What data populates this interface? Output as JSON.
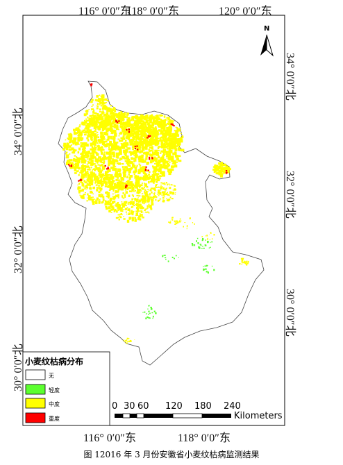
{
  "coords": {
    "top": [
      "116° 0′0″东",
      "118° 0′0″东",
      "120° 0′0″东"
    ],
    "bottom": [
      "116° 0′0″东",
      "118° 0′0″东"
    ],
    "left": [
      "34° 0′0″北",
      "32° 0′0″北",
      "30° 0′0″北"
    ],
    "right": [
      "34° 0′0″北",
      "32° 0′0″北",
      "30° 0′0″北"
    ]
  },
  "north_arrow": {
    "letter": "N"
  },
  "legend": {
    "title": "小麦纹枯病分布",
    "items": [
      {
        "label": "无",
        "color": "#ffffff"
      },
      {
        "label": "轻度",
        "color": "#5cff2f"
      },
      {
        "label": "中度",
        "color": "#ffff00"
      },
      {
        "label": "重度",
        "color": "#ff0000"
      }
    ]
  },
  "scale_bar": {
    "ticks": [
      "0",
      "30",
      "60",
      "120",
      "180",
      "240"
    ],
    "unit": "Kilometers"
  },
  "caption": "图 12016 年 3 月份安徽省小麦纹枯病监测结果",
  "colors": {
    "province_fill": "#ffffff",
    "outline": "#444444",
    "none": "#ffffff",
    "light": "#5cff2f",
    "moderate": "#ffff00",
    "severe": "#ff0000"
  }
}
